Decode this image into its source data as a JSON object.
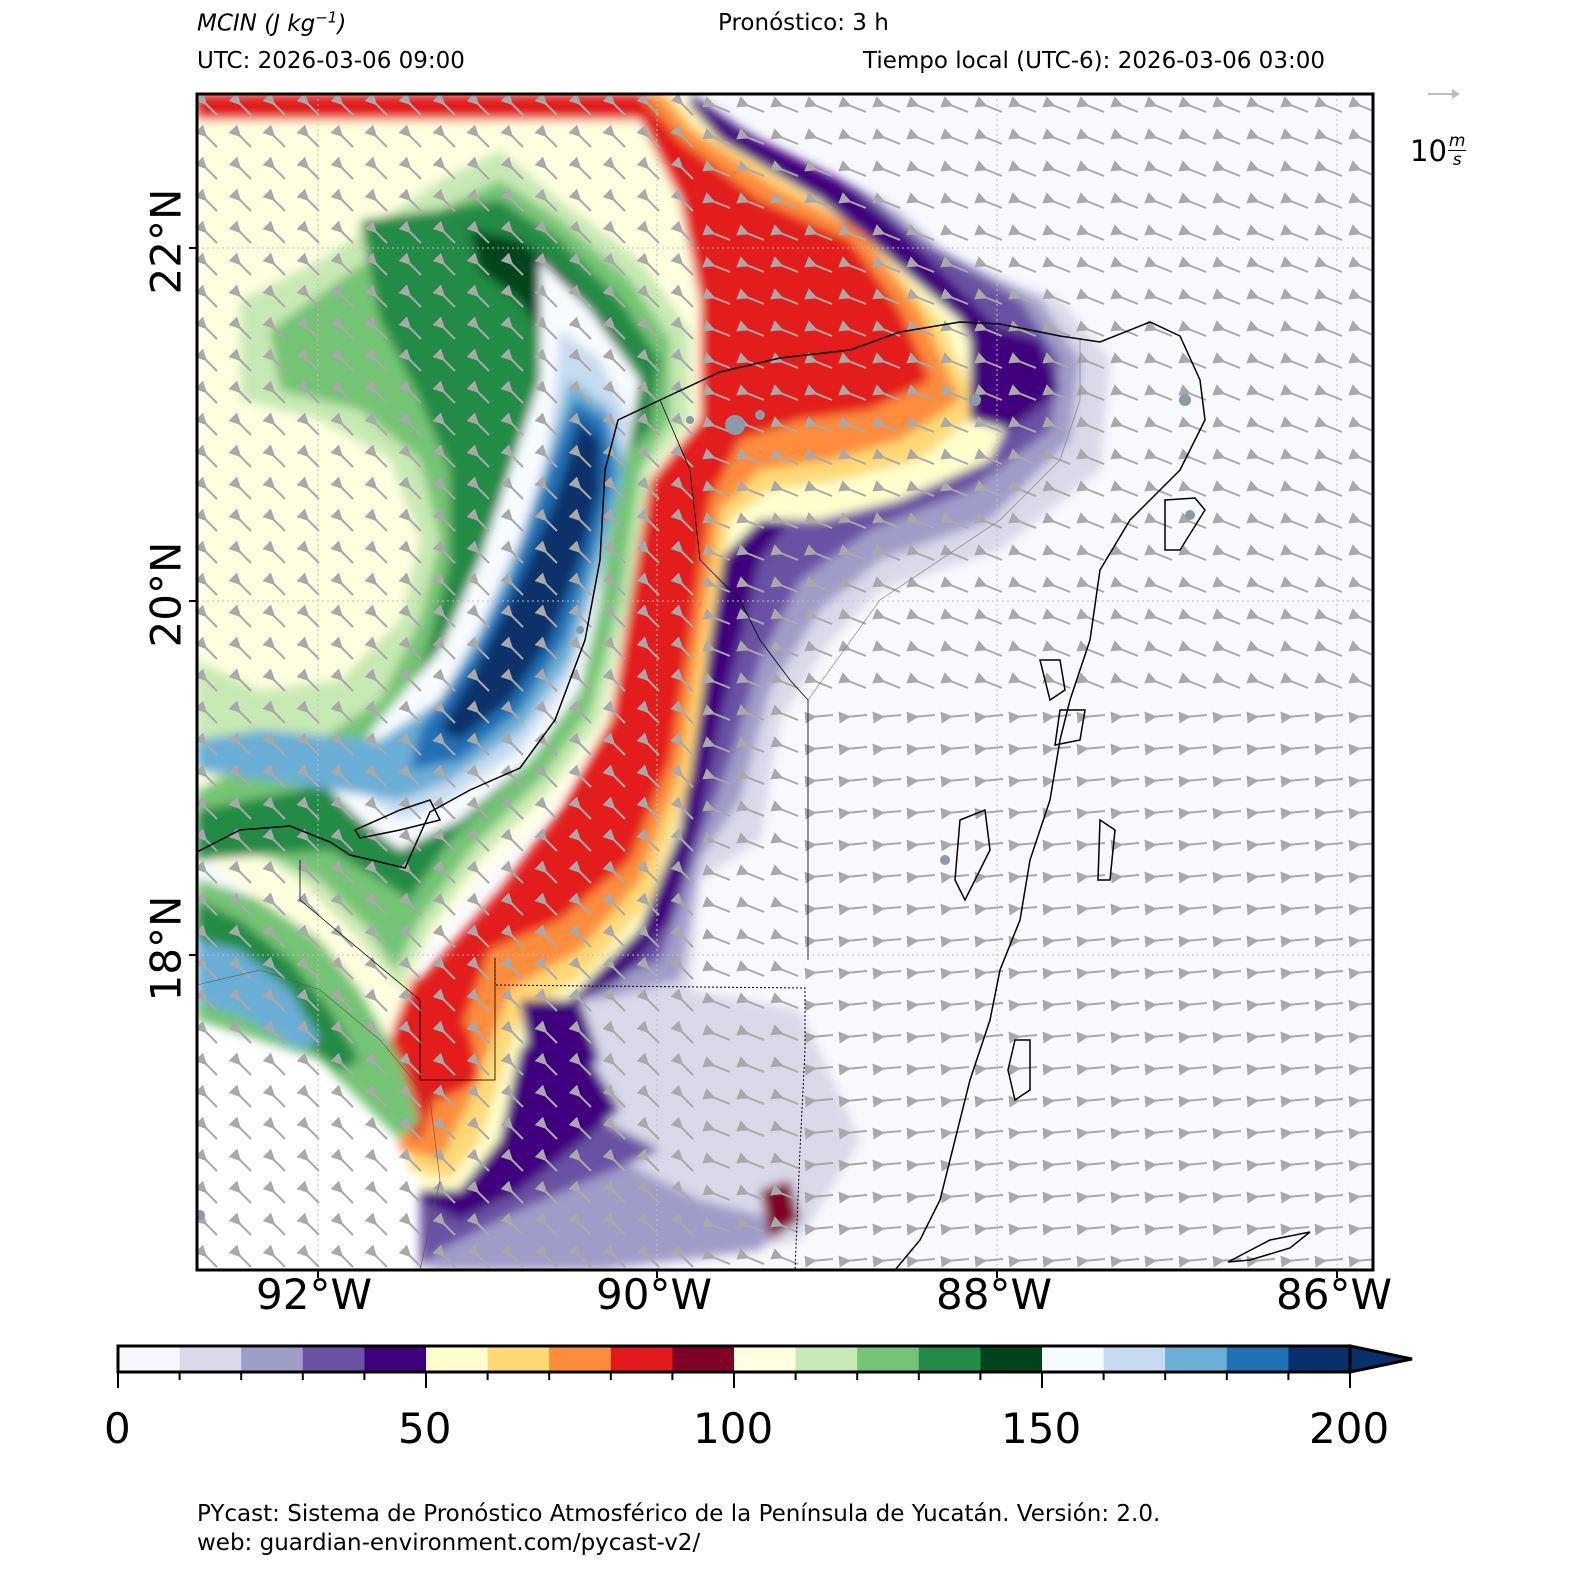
{
  "header": {
    "variable": "MCIN",
    "units_base": "(J kg",
    "units_exp": "−1",
    "units_close": ")",
    "forecast": "Pronóstico: 3 h",
    "utc": "UTC:  2026-03-06 09:00",
    "local": "Tiempo local (UTC-6): 2026-03-06 03:00"
  },
  "wind_key": {
    "value": "10",
    "unit_num": "m",
    "unit_den": "s"
  },
  "axes": {
    "lon_labels": [
      "92°W",
      "90°W",
      "88°W",
      "86°W"
    ],
    "lat_labels": [
      "22°N",
      "20°N",
      "18°N"
    ]
  },
  "colorbar": {
    "tick_labels": [
      "0",
      "50",
      "100",
      "150",
      "200"
    ],
    "bins": [
      0,
      10,
      20,
      30,
      40,
      50,
      60,
      70,
      80,
      90,
      100,
      110,
      120,
      130,
      140,
      150,
      160,
      170,
      180,
      190,
      200
    ],
    "colors": [
      "#f7f7fb",
      "#d9d9ea",
      "#a09cc8",
      "#6a51a3",
      "#3f007d",
      "#ffffcc",
      "#fed976",
      "#fd8d3c",
      "#e31a1c",
      "#800026",
      "#ffffe0",
      "#c7e9b4",
      "#74c476",
      "#238b45",
      "#00441b",
      "#f7fbff",
      "#c6dbef",
      "#6baed6",
      "#2171b5",
      "#08306b"
    ],
    "extend": "max"
  },
  "map": {
    "ocean_color": "#f8f9fd",
    "land_white_color": "#ffffff",
    "vector_color": "#a9a9a9",
    "coast_color": "#000000"
  },
  "footer": {
    "line1": "PYcast: Sistema de Pronóstico Atmosférico de la Península de Yucatán. Versión: 2.0.",
    "line2": "web: guardian-environment.com/pycast-v2/"
  }
}
